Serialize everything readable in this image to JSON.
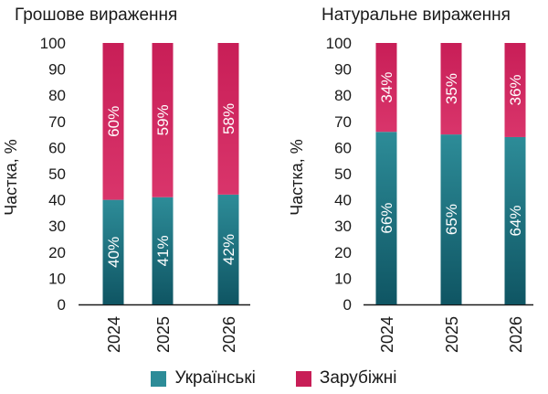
{
  "colors": {
    "ukrainian": "#2d8c98",
    "ukrainian_dark": "#0f5563",
    "foreign": "#c81e57",
    "foreign_light": "#d9356b",
    "text": "#1a1a1a"
  },
  "legend": {
    "items": [
      {
        "label": "Українські",
        "color_key": "ukrainian"
      },
      {
        "label": "Зарубіжні",
        "color_key": "foreign"
      }
    ]
  },
  "chart_data": [
    {
      "type": "bar",
      "stacked": true,
      "title": "Грошове вираження",
      "ylabel": "Частка, %",
      "xlabel": "",
      "categories": [
        "2024",
        "2025",
        "2026"
      ],
      "ylim": [
        0,
        100
      ],
      "yticks": [
        0,
        10,
        20,
        30,
        40,
        50,
        60,
        70,
        80,
        90,
        100
      ],
      "grid": false,
      "series": [
        {
          "name": "Українські",
          "color_key": "ukrainian",
          "values": [
            40,
            41,
            42
          ],
          "labels": [
            "40%",
            "41%",
            "42%"
          ]
        },
        {
          "name": "Зарубіжні",
          "color_key": "foreign",
          "values": [
            60,
            59,
            58
          ],
          "labels": [
            "60%",
            "59%",
            "58%"
          ]
        }
      ]
    },
    {
      "type": "bar",
      "stacked": true,
      "title": "Натуральне вираження",
      "ylabel": "Частка, %",
      "xlabel": "",
      "categories": [
        "2024",
        "2025",
        "2026"
      ],
      "ylim": [
        0,
        100
      ],
      "yticks": [
        0,
        10,
        20,
        30,
        40,
        50,
        60,
        70,
        80,
        90,
        100
      ],
      "grid": false,
      "series": [
        {
          "name": "Українські",
          "color_key": "ukrainian",
          "values": [
            66,
            65,
            64
          ],
          "labels": [
            "66%",
            "65%",
            "64%"
          ]
        },
        {
          "name": "Зарубіжні",
          "color_key": "foreign",
          "values": [
            34,
            35,
            36
          ],
          "labels": [
            "34%",
            "35%",
            "36%"
          ]
        }
      ]
    }
  ]
}
